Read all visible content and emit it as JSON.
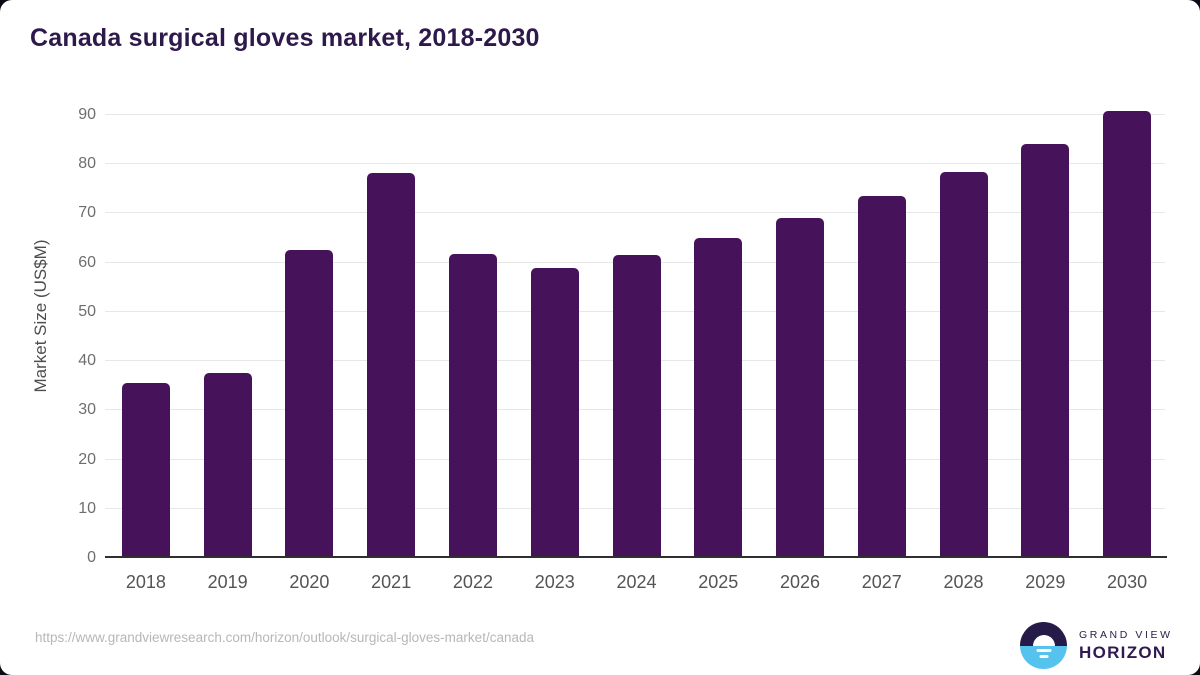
{
  "title": "Canada surgical gloves market, 2018-2030",
  "chart_data": {
    "type": "bar",
    "title": "Canada surgical gloves market, 2018-2030",
    "categories": [
      "2018",
      "2019",
      "2020",
      "2021",
      "2022",
      "2023",
      "2024",
      "2025",
      "2026",
      "2027",
      "2028",
      "2029",
      "2030"
    ],
    "values": [
      35.3,
      37.4,
      62.3,
      78.0,
      61.6,
      58.7,
      61.4,
      64.9,
      68.9,
      73.3,
      78.3,
      83.9,
      90.7
    ],
    "xlabel": "",
    "ylabel": "Market Size (US$M)",
    "ylim": [
      0,
      90
    ],
    "yticks": [
      0,
      10,
      20,
      30,
      40,
      50,
      60,
      70,
      80,
      90
    ],
    "grid": true,
    "legend": false,
    "bar_color": "#461259"
  },
  "footer": {
    "source_url": "https://www.grandviewresearch.com/horizon/outlook/surgical-gloves-market/canada",
    "logo": {
      "top_text": "GRAND VIEW",
      "bottom_text": "HORIZON"
    }
  },
  "colors": {
    "title_text": "#2e194b",
    "bar": "#461259",
    "grid_line": "#e7e7e7",
    "axis_line": "#2f2f2f",
    "tick_label": "#6d6e70",
    "category_label": "#545456",
    "url_text": "#b7b7b7",
    "logo_dark": "#261a48",
    "logo_blue": "#55c3ee"
  }
}
